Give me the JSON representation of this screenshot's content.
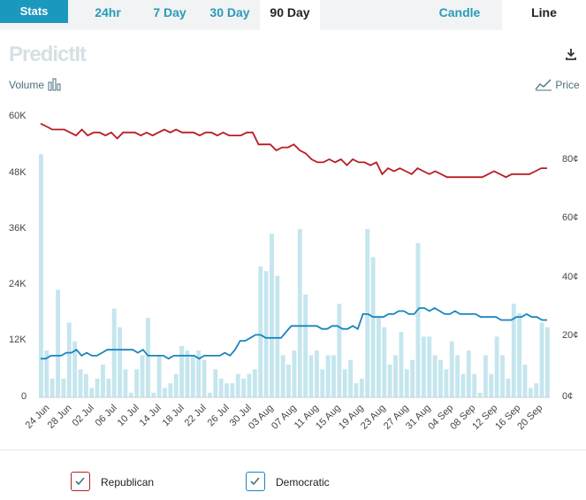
{
  "tabs": {
    "stats": "Stats",
    "ranges": [
      "24hr",
      "7 Day",
      "30 Day",
      "90 Day"
    ],
    "active_range": "90 Day",
    "chart_types": [
      "Candle",
      "Line"
    ],
    "active_chart_type": "Line"
  },
  "brand": "PredictIt",
  "labels": {
    "volume": "Volume",
    "price": "Price"
  },
  "colors": {
    "republican": "#b81c24",
    "democratic": "#1b84bd",
    "volume": "#c5e6ee"
  },
  "chart_data": {
    "type": "line",
    "y_left": {
      "label": "",
      "ticks": [
        "0",
        "12K",
        "24K",
        "36K",
        "48K",
        "60K"
      ],
      "range": [
        0,
        60000
      ]
    },
    "y_right": {
      "label": "",
      "ticks": [
        "0¢",
        "20¢",
        "40¢",
        "60¢",
        "80¢"
      ],
      "range": [
        0,
        96
      ]
    },
    "x_ticks": [
      "24 Jun",
      "28 Jun",
      "02 Jul",
      "06 Jul",
      "10 Jul",
      "14 Jul",
      "18 Jul",
      "22 Jul",
      "26 Jul",
      "30 Jul",
      "03 Aug",
      "07 Aug",
      "11 Aug",
      "15 Aug",
      "19 Aug",
      "23 Aug",
      "27 Aug",
      "31 Aug",
      "04 Sep",
      "08 Sep",
      "12 Sep",
      "16 Sep",
      "20 Sep"
    ],
    "series": [
      {
        "name": "Republican",
        "values": [
          92,
          91,
          90,
          90,
          90,
          89,
          88,
          90,
          88,
          89,
          89,
          88,
          89,
          87,
          89,
          89,
          89,
          88,
          89,
          88,
          89,
          90,
          89,
          90,
          89,
          89,
          89,
          88,
          89,
          89,
          88,
          89,
          88,
          88,
          88,
          89,
          89,
          85,
          85,
          85,
          83,
          84,
          84,
          85,
          83,
          82,
          80,
          79,
          79,
          80,
          79,
          80,
          78,
          80,
          79,
          79,
          78,
          79,
          75,
          77,
          76,
          77,
          76,
          75,
          77,
          76,
          75,
          76,
          75,
          74,
          74,
          74,
          74,
          74,
          74,
          74,
          75,
          76,
          75,
          74,
          75,
          75,
          75,
          75,
          76,
          77,
          77
        ]
      },
      {
        "name": "Democratic",
        "values": [
          13,
          13,
          14,
          14,
          14,
          15,
          15,
          16,
          14,
          15,
          14,
          14,
          15,
          16,
          16,
          16,
          16,
          16,
          16,
          15,
          16,
          14,
          14,
          14,
          14,
          13,
          14,
          14,
          14,
          14,
          14,
          13,
          14,
          14,
          14,
          14,
          15,
          14,
          16,
          19,
          19,
          20,
          21,
          21,
          20,
          20,
          20,
          20,
          22,
          24,
          24,
          24,
          24,
          24,
          24,
          23,
          23,
          24,
          24,
          23,
          23,
          24,
          23,
          28,
          28,
          27,
          27,
          27,
          28,
          28,
          29,
          29,
          28,
          28,
          30,
          30,
          29,
          30,
          29,
          28,
          28,
          29,
          28,
          28,
          28,
          28,
          27,
          27,
          27,
          27,
          26,
          26,
          26,
          27,
          27,
          28,
          27,
          27,
          26,
          26
        ]
      },
      {
        "name": "Volume",
        "values": [
          52000,
          10000,
          4000,
          23000,
          4000,
          16000,
          12000,
          6000,
          5000,
          2000,
          4000,
          7000,
          4000,
          19000,
          15000,
          6000,
          1000,
          6000,
          9000,
          17000,
          1000,
          9000,
          2000,
          3000,
          5000,
          11000,
          10000,
          9000,
          10000,
          8000,
          1000,
          6000,
          4000,
          3000,
          3000,
          5000,
          4000,
          5000,
          6000,
          28000,
          27000,
          35000,
          26000,
          9000,
          7000,
          10000,
          36000,
          22000,
          9000,
          10000,
          6000,
          9000,
          9000,
          20000,
          6000,
          8000,
          3000,
          4000,
          36000,
          30000,
          17000,
          15000,
          7000,
          9000,
          14000,
          6000,
          8000,
          33000,
          13000,
          13000,
          9000,
          8000,
          6000,
          12000,
          9000,
          5000,
          10000,
          5000,
          1000,
          9000,
          5000,
          13000,
          9000,
          4000,
          20000,
          18000,
          7000,
          2000,
          3000,
          16000,
          15000
        ]
      }
    ]
  },
  "legend": [
    {
      "name": "Republican",
      "color": "#b81c24"
    },
    {
      "name": "Democratic",
      "color": "#1b84bd"
    }
  ]
}
